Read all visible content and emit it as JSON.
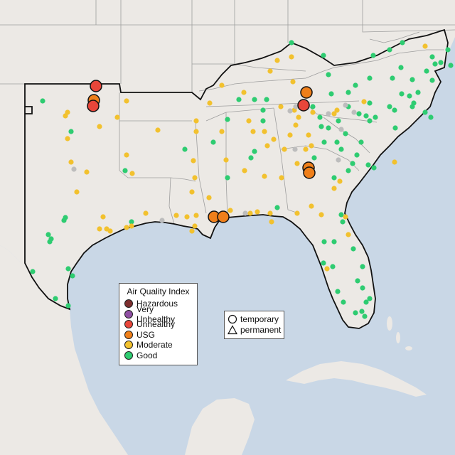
{
  "legend_aqi": {
    "title": "Air Quality Index",
    "items": [
      {
        "label": "Hazardous",
        "color": "#7e2f2f"
      },
      {
        "label": "Very Unhealthy",
        "color": "#8f4fa3"
      },
      {
        "label": "Unhealthy",
        "color": "#e8463a"
      },
      {
        "label": "USG",
        "color": "#ef7f1a"
      },
      {
        "label": "Moderate",
        "color": "#f2c12e"
      },
      {
        "label": "Good",
        "color": "#2ecc71"
      }
    ]
  },
  "legend_site": {
    "items": [
      {
        "label": "temporary",
        "icon": "circle-icon"
      },
      {
        "label": "permanent",
        "icon": "triangle-icon"
      }
    ]
  },
  "colors": {
    "ocean": "#c9d7e6",
    "land": "#ece9e5",
    "state_border": "#9e9e9e",
    "region_outline": "#111111",
    "no_data": "#bdbdbd"
  }
}
